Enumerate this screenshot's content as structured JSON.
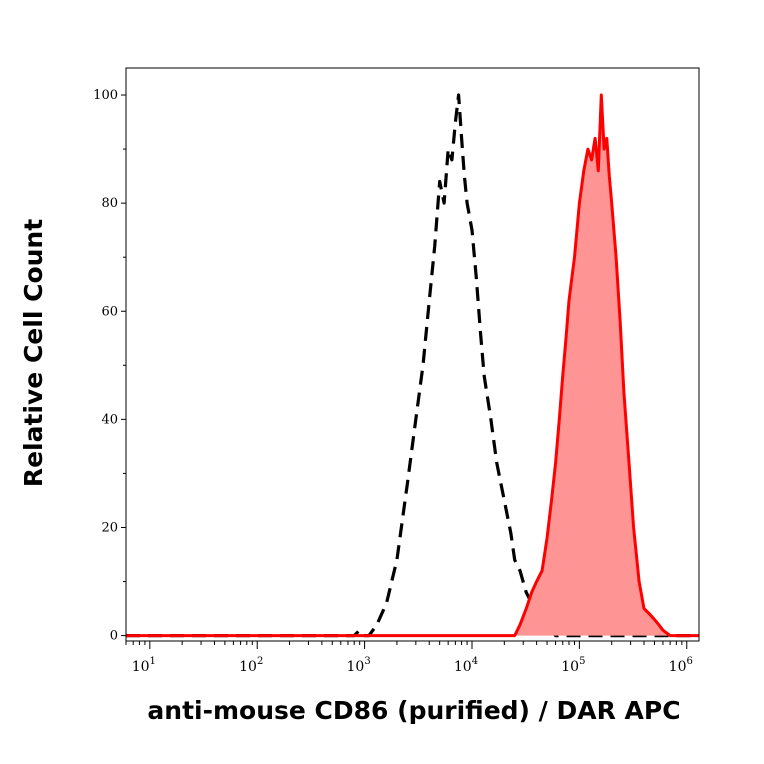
{
  "chart_data": {
    "type": "area",
    "title": "",
    "xlabel": "anti-mouse CD86 (purified) / DAR APC",
    "ylabel": "Relative Cell Count",
    "x_scale": "log",
    "xlim": [
      6,
      1300000
    ],
    "ylim": [
      -1,
      105
    ],
    "grid": false,
    "legend": "none",
    "y_ticks": [
      {
        "value": 0,
        "label": "0"
      },
      {
        "value": 20,
        "label": "20"
      },
      {
        "value": 40,
        "label": "40"
      },
      {
        "value": 60,
        "label": "60"
      },
      {
        "value": 80,
        "label": "80"
      },
      {
        "value": 100,
        "label": "100"
      }
    ],
    "x_ticks": [
      {
        "value": 10,
        "base": "10",
        "exp": "1"
      },
      {
        "value": 100,
        "base": "10",
        "exp": "2"
      },
      {
        "value": 1000,
        "base": "10",
        "exp": "3"
      },
      {
        "value": 10000,
        "base": "10",
        "exp": "4"
      },
      {
        "value": 100000,
        "base": "10",
        "exp": "5"
      },
      {
        "value": 1000000,
        "base": "10",
        "exp": "6"
      }
    ],
    "series": [
      {
        "style": "dashed-line",
        "color": "#000000",
        "x": [
          6,
          100,
          800,
          900,
          1000,
          1100,
          1300,
          1600,
          2000,
          2500,
          3000,
          3500,
          4000,
          4500,
          5000,
          5500,
          6000,
          6500,
          7000,
          7500,
          8000,
          8500,
          9000,
          10000,
          11000,
          12000,
          13000,
          15000,
          17000,
          20000,
          23000,
          25000,
          28000,
          32000,
          36000,
          40000,
          45000,
          50000,
          55000,
          60000,
          1300000
        ],
        "y": [
          0,
          0,
          0,
          1,
          0,
          0,
          2,
          6,
          14,
          28,
          40,
          50,
          62,
          72,
          84,
          80,
          90,
          88,
          95,
          100,
          92,
          85,
          80,
          75,
          66,
          56,
          48,
          40,
          32,
          25,
          19,
          14,
          12,
          8,
          6,
          4,
          3,
          2,
          1,
          0,
          0
        ]
      },
      {
        "style": "filled-area",
        "color": "#ff0000",
        "fill": "#ff9494",
        "x": [
          6,
          25000,
          28000,
          32000,
          36000,
          40000,
          45000,
          50000,
          55000,
          60000,
          65000,
          70000,
          75000,
          80000,
          90000,
          100000,
          110000,
          120000,
          130000,
          140000,
          150000,
          160000,
          170000,
          180000,
          190000,
          200000,
          220000,
          240000,
          260000,
          290000,
          320000,
          360000,
          400000,
          450000,
          500000,
          550000,
          600000,
          700000,
          1300000
        ],
        "y": [
          0,
          0,
          2,
          5,
          8,
          10,
          12,
          18,
          25,
          32,
          40,
          48,
          55,
          62,
          70,
          80,
          86,
          90,
          88,
          92,
          86,
          100,
          90,
          92,
          85,
          80,
          70,
          58,
          45,
          32,
          20,
          10,
          5,
          4,
          3,
          2,
          1,
          0,
          0
        ]
      }
    ]
  }
}
